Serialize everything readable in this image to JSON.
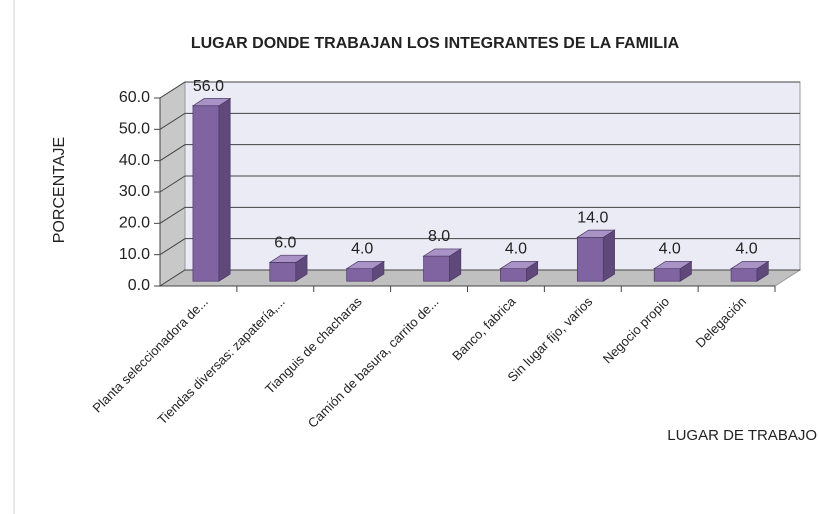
{
  "chart_data": {
    "type": "bar3d",
    "title": "LUGAR DONDE TRABAJAN LOS INTEGRANTES DE LA FAMILIA",
    "ylabel": "PORCENTAJE",
    "xlabel": "LUGAR DE TRABAJO",
    "categories": [
      "Planta seleccionadora de...",
      "Tiendas diversas: zapatería,...",
      "Tianguis de chacharas",
      "Camión de basura, carrito de...",
      "Banco, fabrica",
      "Sin lugar fijo, varios",
      "Negocio propio",
      "Delegación"
    ],
    "values": [
      56,
      6,
      4,
      8,
      4,
      14,
      4,
      4
    ],
    "value_labels": [
      "56.0",
      "6.0",
      "4.0",
      "8.0",
      "4.0",
      "14.0",
      "4.0",
      "4.0"
    ],
    "color": "#8064a2",
    "ylim": [
      0,
      60
    ],
    "yticks": [
      {
        "value": 0,
        "label": "0.0"
      },
      {
        "value": 10,
        "label": "10.0"
      },
      {
        "value": 20,
        "label": "20.0"
      },
      {
        "value": 30,
        "label": "30.0"
      },
      {
        "value": 40,
        "label": "40.0"
      },
      {
        "value": 50,
        "label": "50.0"
      },
      {
        "value": 60,
        "label": "60.0"
      }
    ],
    "grid": true
  }
}
